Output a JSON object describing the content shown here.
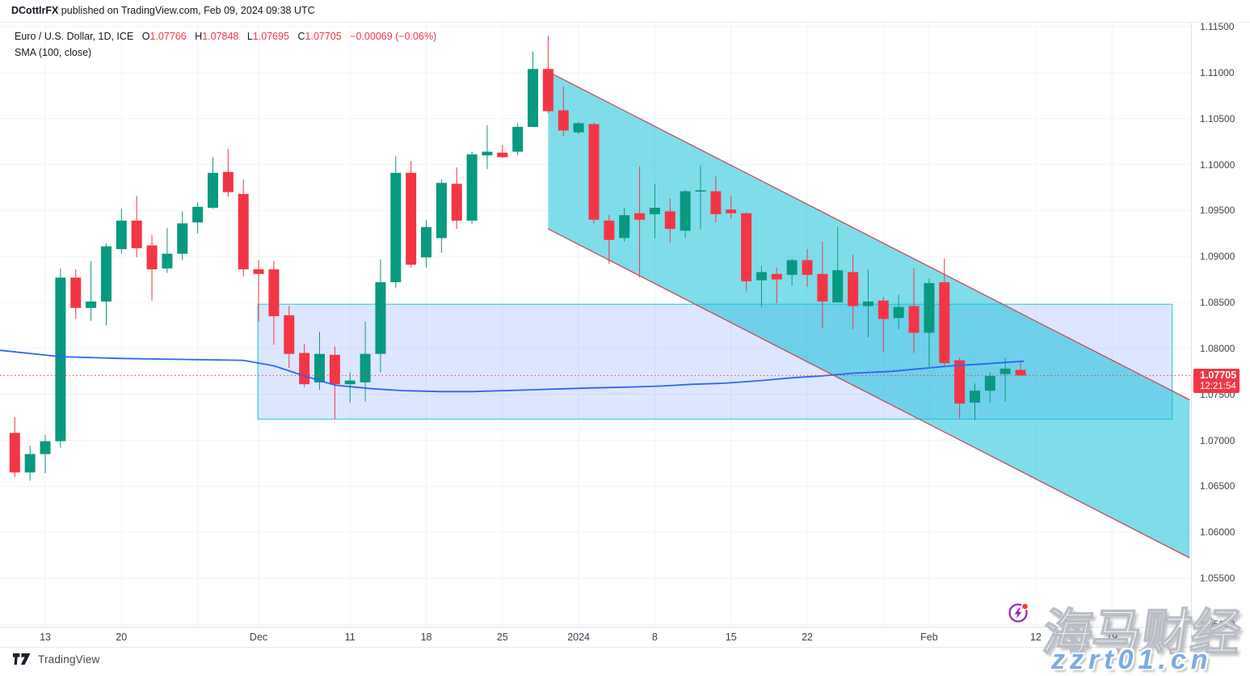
{
  "header": {
    "user": "DCottlrFX",
    "publish_line": " published on TradingView.com, Feb 09, 2024 09:38 UTC"
  },
  "legend": {
    "symbol_title": "Euro / U.S. Dollar, 1D, ICE",
    "o_label": "O",
    "o": "1.07766",
    "h_label": "H",
    "h": "1.07848",
    "l_label": "L",
    "l": "1.07695",
    "c_label": "C",
    "c": "1.07705",
    "change": "−0.00069 (−0.06%)",
    "indicator": "SMA (100, close)"
  },
  "badge": {
    "price": "1.07705",
    "countdown": "12:21:54"
  },
  "footer": {
    "brand": "TradingView"
  },
  "watermark": {
    "line1": "海马财经",
    "line2": "zzrt01.cn"
  },
  "chart_data": {
    "type": "candlestick",
    "title": "Euro / U.S. Dollar, 1D, ICE",
    "symbol": "EUR/USD",
    "interval": "1D",
    "exchange": "ICE",
    "xlabel": "",
    "ylabel": "",
    "grid": true,
    "ylim": [
      1.05,
      1.115
    ],
    "y_ticks": [
      1.115,
      1.11,
      1.105,
      1.1,
      1.095,
      1.09,
      1.085,
      1.08,
      1.075,
      1.07,
      1.065,
      1.06,
      1.055,
      1.05
    ],
    "x_labels": [
      {
        "index": 2,
        "text": "13"
      },
      {
        "index": 7,
        "text": "20"
      },
      {
        "index": 16,
        "text": "Dec"
      },
      {
        "index": 22,
        "text": "11"
      },
      {
        "index": 27,
        "text": "18"
      },
      {
        "index": 32,
        "text": "25"
      },
      {
        "index": 37,
        "text": "2024"
      },
      {
        "index": 42,
        "text": "8"
      },
      {
        "index": 47,
        "text": "15"
      },
      {
        "index": 52,
        "text": "22"
      },
      {
        "index": 60,
        "text": "Feb"
      },
      {
        "index": 67,
        "text": "12"
      },
      {
        "index": 72,
        "text": "19"
      }
    ],
    "grid_indices": [
      2,
      7,
      12,
      16,
      22,
      27,
      32,
      37,
      42,
      47,
      52,
      57,
      60,
      67,
      72
    ],
    "candles": [
      [
        "2023-11-09",
        1.0708,
        1.0725,
        1.066,
        1.0665
      ],
      [
        "2023-11-10",
        1.0665,
        1.0694,
        1.0656,
        1.0685
      ],
      [
        "2023-11-13",
        1.0685,
        1.0706,
        1.0664,
        1.0699
      ],
      [
        "2023-11-14",
        1.0699,
        1.0887,
        1.0692,
        1.0877
      ],
      [
        "2023-11-15",
        1.0877,
        1.0886,
        1.0832,
        1.0844
      ],
      [
        "2023-11-16",
        1.0844,
        1.0895,
        1.083,
        1.0851
      ],
      [
        "2023-11-17",
        1.0851,
        1.0914,
        1.0825,
        1.0911
      ],
      [
        "2023-11-20",
        1.0908,
        1.0952,
        1.0903,
        1.0939
      ],
      [
        "2023-11-21",
        1.0939,
        1.0966,
        1.0899,
        1.0909
      ],
      [
        "2023-11-22",
        1.0912,
        1.0923,
        1.0852,
        1.0886
      ],
      [
        "2023-11-23",
        1.0887,
        1.0931,
        1.0882,
        1.0903
      ],
      [
        "2023-11-24",
        1.0903,
        1.0949,
        1.0896,
        1.0936
      ],
      [
        "2023-11-27",
        1.0937,
        1.0959,
        1.0925,
        1.0954
      ],
      [
        "2023-11-28",
        1.0953,
        1.1008,
        1.0952,
        1.0991
      ],
      [
        "2023-11-29",
        1.0992,
        1.1017,
        1.0965,
        1.097
      ],
      [
        "2023-11-30",
        1.0968,
        1.0984,
        1.0878,
        1.0886
      ],
      [
        "2023-12-01",
        1.0886,
        1.0896,
        1.0829,
        1.0881
      ],
      [
        "2023-12-04",
        1.0886,
        1.0895,
        1.0804,
        1.0835
      ],
      [
        "2023-12-05",
        1.0836,
        1.0846,
        1.0779,
        1.0794
      ],
      [
        "2023-12-06",
        1.0795,
        1.0805,
        1.0758,
        1.0761
      ],
      [
        "2023-12-07",
        1.0763,
        1.0818,
        1.0755,
        1.0794
      ],
      [
        "2023-12-08",
        1.0793,
        1.0802,
        1.0723,
        1.0761
      ],
      [
        "2023-12-11",
        1.0761,
        1.0774,
        1.0741,
        1.0765
      ],
      [
        "2023-12-12",
        1.0763,
        1.0829,
        1.0742,
        1.0794
      ],
      [
        "2023-12-13",
        1.0794,
        1.0897,
        1.0774,
        1.0872
      ],
      [
        "2023-12-14",
        1.0872,
        1.1009,
        1.0866,
        1.0991
      ],
      [
        "2023-12-15",
        1.0991,
        1.1004,
        1.0888,
        1.0891
      ],
      [
        "2023-12-18",
        1.0899,
        1.094,
        1.0888,
        1.0932
      ],
      [
        "2023-12-19",
        1.092,
        1.0984,
        1.0904,
        1.098
      ],
      [
        "2023-12-20",
        1.0979,
        1.0997,
        1.093,
        1.0939
      ],
      [
        "2023-12-21",
        1.0939,
        1.1014,
        1.0935,
        1.1011
      ],
      [
        "2023-12-22",
        1.101,
        1.1043,
        1.0995,
        1.1014
      ],
      [
        "2023-12-25",
        1.1013,
        1.1021,
        1.1007,
        1.1008
      ],
      [
        "2023-12-26",
        1.1014,
        1.1045,
        1.101,
        1.1041
      ],
      [
        "2023-12-27",
        1.1041,
        1.1123,
        1.1041,
        1.1104
      ],
      [
        "2023-12-28",
        1.1104,
        1.114,
        1.1056,
        1.1058
      ],
      [
        "2023-12-29",
        1.1059,
        1.1085,
        1.1031,
        1.1037
      ],
      [
        "2024-01-01",
        1.1035,
        1.1046,
        1.1033,
        1.1045
      ],
      [
        "2024-01-02",
        1.1044,
        1.1046,
        1.0936,
        1.094
      ],
      [
        "2024-01-03",
        1.0939,
        1.0945,
        1.0892,
        1.0918
      ],
      [
        "2024-01-04",
        1.092,
        1.0953,
        1.0916,
        1.0945
      ],
      [
        "2024-01-05",
        1.0947,
        1.0998,
        1.0877,
        1.094
      ],
      [
        "2024-01-08",
        1.0946,
        1.0979,
        1.092,
        1.0953
      ],
      [
        "2024-01-09",
        1.0949,
        1.0963,
        1.0915,
        1.093
      ],
      [
        "2024-01-10",
        1.0928,
        1.0972,
        1.092,
        1.0971
      ],
      [
        "2024-01-11",
        1.0972,
        1.0999,
        1.093,
        1.0972
      ],
      [
        "2024-01-12",
        1.0971,
        1.0987,
        1.0937,
        1.0946
      ],
      [
        "2024-01-15",
        1.0951,
        1.0966,
        1.0941,
        1.0947
      ],
      [
        "2024-01-16",
        1.0947,
        1.0948,
        1.0862,
        1.0873
      ],
      [
        "2024-01-17",
        1.0874,
        1.089,
        1.0845,
        1.0883
      ],
      [
        "2024-01-18",
        1.0881,
        1.0888,
        1.0849,
        1.0875
      ],
      [
        "2024-01-19",
        1.088,
        1.0898,
        1.0868,
        1.0896
      ],
      [
        "2024-01-22",
        1.0896,
        1.0908,
        1.0867,
        1.088
      ],
      [
        "2024-01-23",
        1.0881,
        1.0916,
        1.0822,
        1.0851
      ],
      [
        "2024-01-24",
        1.085,
        1.0932,
        1.085,
        1.0885
      ],
      [
        "2024-01-25",
        1.0883,
        1.0902,
        1.0821,
        1.0846
      ],
      [
        "2024-01-26",
        1.0846,
        1.0886,
        1.0812,
        1.0851
      ],
      [
        "2024-01-29",
        1.0852,
        1.0856,
        1.0796,
        1.0832
      ],
      [
        "2024-01-30",
        1.0833,
        1.0858,
        1.0821,
        1.0845
      ],
      [
        "2024-01-31",
        1.0846,
        1.0887,
        1.0795,
        1.0817
      ],
      [
        "2024-02-01",
        1.0817,
        1.0876,
        1.078,
        1.0871
      ],
      [
        "2024-02-02",
        1.0872,
        1.0898,
        1.0781,
        1.0784
      ],
      [
        "2024-02-05",
        1.0787,
        1.079,
        1.0723,
        1.074
      ],
      [
        "2024-02-06",
        1.0741,
        1.0762,
        1.0722,
        1.0754
      ],
      [
        "2024-02-07",
        1.0754,
        1.0774,
        1.0741,
        1.077
      ],
      [
        "2024-02-08",
        1.0772,
        1.079,
        1.0742,
        1.0778
      ],
      [
        "2024-02-09",
        1.07766,
        1.07848,
        1.07695,
        1.07705
      ]
    ],
    "sma": {
      "label": "SMA (100, close)",
      "period": 100,
      "source": "close",
      "points": [
        {
          "i": -1.0,
          "v": 1.0798
        },
        {
          "i": 3.0,
          "v": 1.0791
        },
        {
          "i": 7.0,
          "v": 1.0789
        },
        {
          "i": 11.0,
          "v": 1.0788
        },
        {
          "i": 15.0,
          "v": 1.0787
        },
        {
          "i": 17.0,
          "v": 1.0781
        },
        {
          "i": 19.0,
          "v": 1.077
        },
        {
          "i": 21.0,
          "v": 1.076
        },
        {
          "i": 23.5,
          "v": 1.0756
        },
        {
          "i": 25.5,
          "v": 1.0754
        },
        {
          "i": 28.0,
          "v": 1.0753
        },
        {
          "i": 30.0,
          "v": 1.0753
        },
        {
          "i": 32.0,
          "v": 1.0754
        },
        {
          "i": 34.0,
          "v": 1.0755
        },
        {
          "i": 36.0,
          "v": 1.0756
        },
        {
          "i": 38.0,
          "v": 1.0757
        },
        {
          "i": 40.5,
          "v": 1.0758
        },
        {
          "i": 42.5,
          "v": 1.0759
        },
        {
          "i": 44.5,
          "v": 1.0761
        },
        {
          "i": 46.5,
          "v": 1.0762
        },
        {
          "i": 49.0,
          "v": 1.0765
        },
        {
          "i": 51.0,
          "v": 1.0768
        },
        {
          "i": 53.0,
          "v": 1.077
        },
        {
          "i": 55.0,
          "v": 1.0773
        },
        {
          "i": 57.5,
          "v": 1.0775
        },
        {
          "i": 59.5,
          "v": 1.0778
        },
        {
          "i": 61.5,
          "v": 1.0781
        },
        {
          "i": 63.5,
          "v": 1.0783
        },
        {
          "i": 66.2,
          "v": 1.0786
        }
      ]
    },
    "channel": {
      "start_index": 35,
      "end_index": 77.1,
      "top_start": 1.1101,
      "top_end": 1.0744,
      "bottom_start": 1.093,
      "bottom_end": 1.0572
    },
    "zone": {
      "start_index": 15.95,
      "end_index": 75.95,
      "top": 1.0848,
      "bottom": 1.0723
    },
    "last_price": 1.07705,
    "colors": {
      "up": "#089981",
      "down": "#F23645",
      "sma": "#2E66F0",
      "channel_fill": "rgba(0,188,212,0.5)",
      "channel_line": "#C84A58",
      "zone_fill": "rgba(41,98,255,0.16)",
      "zone_line": "rgba(48,201,224,0.9)",
      "grid": "#F0F3FA",
      "last_line": "#F23645"
    }
  }
}
